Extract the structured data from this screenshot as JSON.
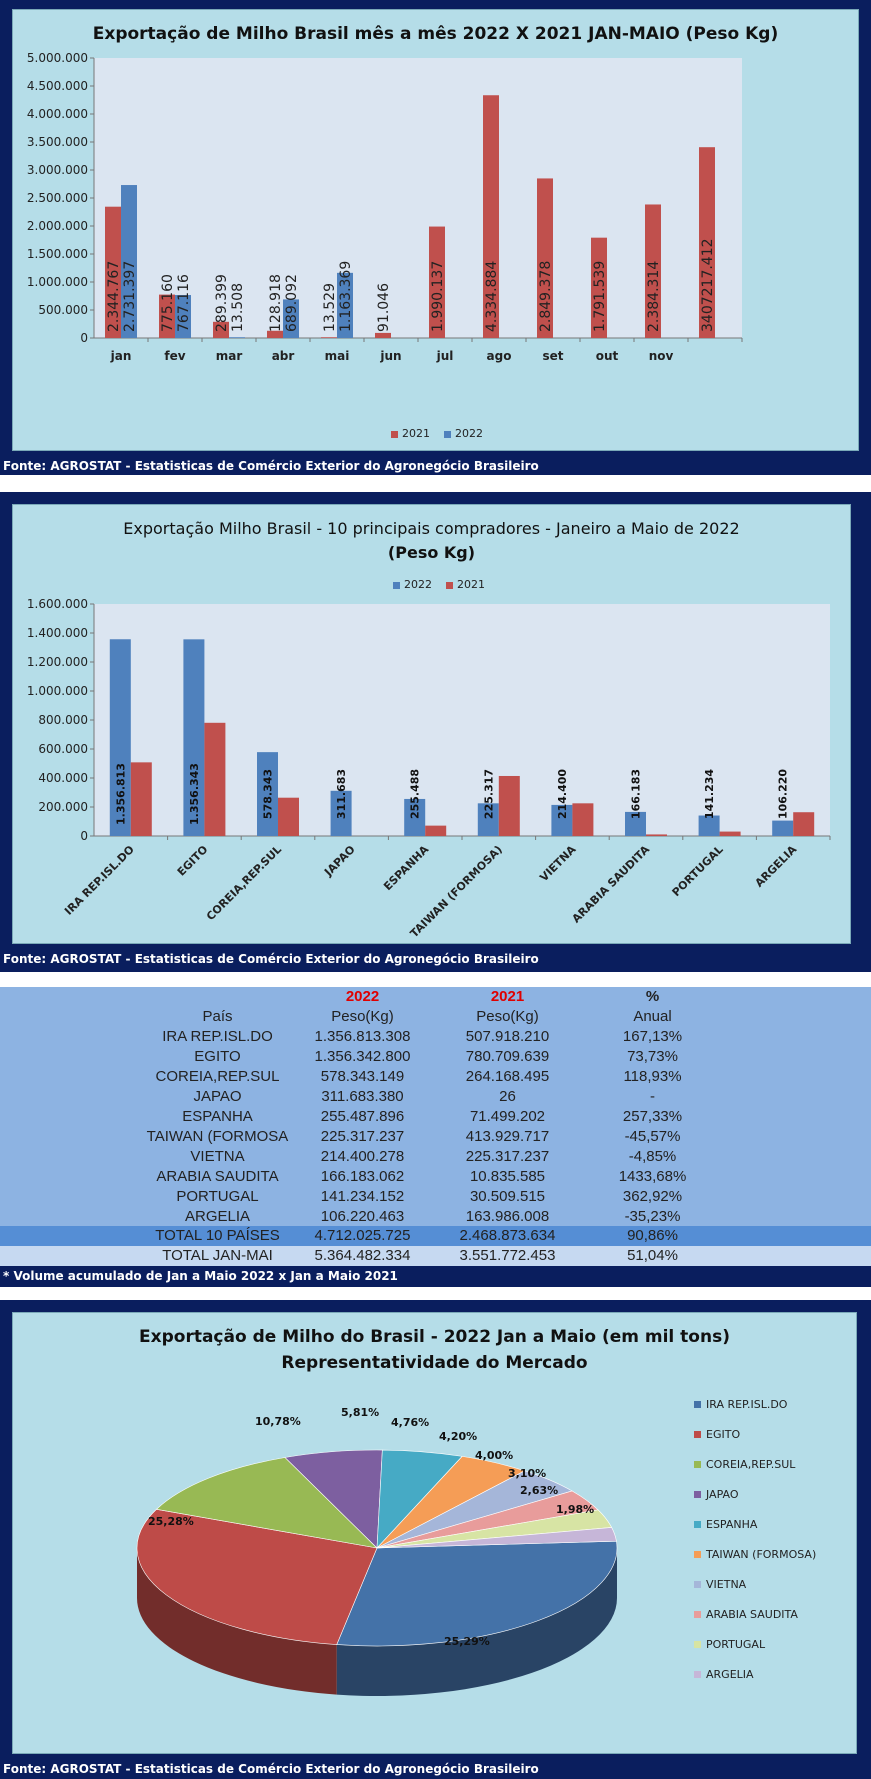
{
  "source_text": "Fonte: AGROSTAT - Estatisticas de Comércio Exterior do Agronegócio Brasileiro",
  "chart_data": [
    {
      "type": "bar",
      "title": "Exportação de Milho Brasil mês a mês 2022 X 2021 JAN-MAIO (Peso Kg)",
      "categories": [
        "jan",
        "fev",
        "mar",
        "abr",
        "mai",
        "jun",
        "jul",
        "ago",
        "set",
        "out",
        "nov",
        ""
      ],
      "series": [
        {
          "name": "2021",
          "color": "#c0504d",
          "values": [
            2344767,
            775160,
            289399,
            128918,
            13529,
            91046,
            1990137,
            4334884,
            2849378,
            1791539,
            2384314,
            3407217.412
          ],
          "labels": [
            "2.344.767",
            "775.160",
            "289.399",
            "128.918",
            "13.529",
            "91.046",
            "1.990.137",
            "4.334.884",
            "2.849.378",
            "1.791.539",
            "2.384.314",
            "3407217.412"
          ]
        },
        {
          "name": "2022",
          "color": "#4f81bd",
          "values": [
            2731397,
            767116,
            13508,
            689092,
            1163369,
            null,
            null,
            null,
            null,
            null,
            null,
            null
          ],
          "labels": [
            "2.731.397",
            "767.116",
            "13.508",
            "689.092",
            "1.163.369",
            "",
            "",
            "",
            "",
            "",
            "",
            ""
          ]
        }
      ],
      "yticks": [
        "0",
        "500.000",
        "1.000.000",
        "1.500.000",
        "2.000.000",
        "2.500.000",
        "3.000.000",
        "3.500.000",
        "4.000.000",
        "4.500.000",
        "5.000.000"
      ],
      "ylim": [
        0,
        5000000
      ],
      "legend": "bottom"
    },
    {
      "type": "bar",
      "title": "Exportação Milho Brasil - 10 principais compradores  - Janeiro a Maio de 2022",
      "subtitle": "(Peso Kg)",
      "categories": [
        "IRA REP.ISL.DO",
        "EGITO",
        "COREIA,REP.SUL",
        "JAPAO",
        "ESPANHA",
        "TAIWAN (FORMOSA)",
        "VIETNA",
        "ARABIA SAUDITA",
        "PORTUGAL",
        "ARGELIA"
      ],
      "series": [
        {
          "name": "2022",
          "color": "#4f81bd",
          "values": [
            1356813,
            1356343,
            578343,
            311683,
            255488,
            225317,
            214400,
            166183,
            141234,
            106220
          ],
          "labels": [
            "1.356.813",
            "1.356.343",
            "578.343",
            "311.683",
            "255.488",
            "225.317",
            "214.400",
            "166.183",
            "141.234",
            "106.220"
          ]
        },
        {
          "name": "2021",
          "color": "#c0504d",
          "values": [
            507918,
            780710,
            264168,
            0.026,
            71499,
            413930,
            225317,
            10836,
            30510,
            163986
          ]
        }
      ],
      "yticks": [
        "0",
        "200.000",
        "400.000",
        "600.000",
        "800.000",
        "1.000.000",
        "1.200.000",
        "1.400.000",
        "1.600.000"
      ],
      "ylim": [
        0,
        1600000
      ],
      "legend": "top"
    },
    {
      "type": "table",
      "header_years": [
        "2022",
        "2021",
        "%"
      ],
      "header_cols": [
        "País",
        "Peso(Kg)",
        "Peso(Kg)",
        "Anual"
      ],
      "rows": [
        [
          "IRA REP.ISL.DO",
          "1.356.813.308",
          "507.918.210",
          "167,13%"
        ],
        [
          "EGITO",
          "1.356.342.800",
          "780.709.639",
          "73,73%"
        ],
        [
          "COREIA,REP.SUL",
          "578.343.149",
          "264.168.495",
          "118,93%"
        ],
        [
          "JAPAO",
          "311.683.380",
          "26",
          "-"
        ],
        [
          "ESPANHA",
          "255.487.896",
          "71.499.202",
          "257,33%"
        ],
        [
          "TAIWAN (FORMOSA",
          "225.317.237",
          "413.929.717",
          "-45,57%"
        ],
        [
          "VIETNA",
          "214.400.278",
          "225.317.237",
          "-4,85%"
        ],
        [
          "ARABIA SAUDITA",
          "166.183.062",
          "10.835.585",
          "1433,68%"
        ],
        [
          "PORTUGAL",
          "141.234.152",
          "30.509.515",
          "362,92%"
        ],
        [
          "ARGELIA",
          "106.220.463",
          "163.986.008",
          "-35,23%"
        ]
      ],
      "total_10": [
        "TOTAL 10 PAÍSES",
        "4.712.025.725",
        "2.468.873.634",
        "90,86%"
      ],
      "total_all": [
        "TOTAL JAN-MAI",
        "5.364.482.334",
        "3.551.772.453",
        "51,04%"
      ],
      "note": "* Volume acumulado de Jan a Maio 2022 x Jan a Maio 2021"
    },
    {
      "type": "pie",
      "title": "Exportação de Milho do Brasil - 2022 Jan a Maio (em mil tons)",
      "subtitle": "Representatividade  do Mercado",
      "slices": [
        {
          "label": "IRA REP.ISL.DO",
          "value": 25.29,
          "text": "25,29%",
          "color": "#4472a8"
        },
        {
          "label": "EGITO",
          "value": 25.28,
          "text": "25,28%",
          "color": "#be4b48"
        },
        {
          "label": "COREIA,REP.SUL",
          "value": 10.78,
          "text": "10,78%",
          "color": "#98b954"
        },
        {
          "label": "JAPAO",
          "value": 5.81,
          "text": "5,81%",
          "color": "#7d5fa0"
        },
        {
          "label": "ESPANHA",
          "value": 4.76,
          "text": "4,76%",
          "color": "#46aac5"
        },
        {
          "label": "TAIWAN (FORMOSA)",
          "value": 4.2,
          "text": "4,20%",
          "color": "#f59d56"
        },
        {
          "label": "VIETNA",
          "value": 4.0,
          "text": "4,00%",
          "color": "#a5b6d9"
        },
        {
          "label": "ARABIA SAUDITA",
          "value": 3.1,
          "text": "3,10%",
          "color": "#e89c9b"
        },
        {
          "label": "PORTUGAL",
          "value": 2.63,
          "text": "2,63%",
          "color": "#d7e4a4"
        },
        {
          "label": "ARGELIA",
          "value": 1.98,
          "text": "1,98%",
          "color": "#c6b6d8"
        }
      ],
      "legend": "right"
    }
  ]
}
